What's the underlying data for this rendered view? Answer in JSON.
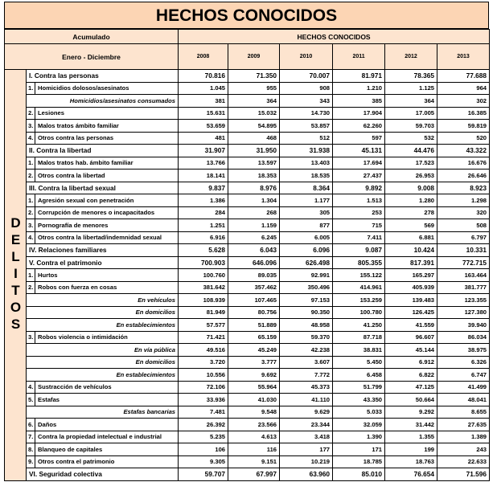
{
  "title": "HECHOS CONOCIDOS",
  "header": {
    "accumulated": "Acumulado",
    "period": "Enero - Diciembre",
    "group_title": "HECHOS CONOCIDOS",
    "years": [
      "2008",
      "2009",
      "2010",
      "2011",
      "2012",
      "2013"
    ]
  },
  "side_label": "DELITOS",
  "rows": [
    {
      "kind": "section",
      "label": "I. Contra las personas",
      "values": [
        "70.816",
        "71.350",
        "70.007",
        "81.971",
        "78.365",
        "77.688"
      ]
    },
    {
      "kind": "item",
      "num": "1.",
      "label": "Homicidios dolosos/asesinatos",
      "values": [
        "1.045",
        "955",
        "908",
        "1.210",
        "1.125",
        "964"
      ]
    },
    {
      "kind": "sub",
      "label": "Homicidios/asesinatos consumados",
      "values": [
        "381",
        "364",
        "343",
        "385",
        "364",
        "302"
      ]
    },
    {
      "kind": "item",
      "num": "2.",
      "label": "Lesiones",
      "values": [
        "15.631",
        "15.032",
        "14.730",
        "17.904",
        "17.005",
        "16.385"
      ]
    },
    {
      "kind": "item",
      "num": "3.",
      "label": "Malos tratos ámbito familiar",
      "values": [
        "53.659",
        "54.895",
        "53.857",
        "62.260",
        "59.703",
        "59.819"
      ]
    },
    {
      "kind": "item",
      "num": "4.",
      "label": "Otros contra las personas",
      "values": [
        "481",
        "468",
        "512",
        "597",
        "532",
        "520"
      ]
    },
    {
      "kind": "section",
      "label": "II. Contra la libertad",
      "values": [
        "31.907",
        "31.950",
        "31.938",
        "45.131",
        "44.476",
        "43.322"
      ]
    },
    {
      "kind": "item",
      "num": "1.",
      "label": "Malos tratos hab. ámbito familiar",
      "values": [
        "13.766",
        "13.597",
        "13.403",
        "17.694",
        "17.523",
        "16.676"
      ]
    },
    {
      "kind": "item",
      "num": "2.",
      "label": "Otros contra la libertad",
      "values": [
        "18.141",
        "18.353",
        "18.535",
        "27.437",
        "26.953",
        "26.646"
      ]
    },
    {
      "kind": "section",
      "label": "III. Contra la libertad sexual",
      "values": [
        "9.837",
        "8.976",
        "8.364",
        "9.892",
        "9.008",
        "8.923"
      ]
    },
    {
      "kind": "item",
      "num": "1.",
      "label": "Agresión sexual con penetración",
      "values": [
        "1.386",
        "1.304",
        "1.177",
        "1.513",
        "1.280",
        "1.298"
      ]
    },
    {
      "kind": "item",
      "num": "2.",
      "label": "Corrupción de menores o incapacitados",
      "values": [
        "284",
        "268",
        "305",
        "253",
        "278",
        "320"
      ]
    },
    {
      "kind": "item",
      "num": "3.",
      "label": "Pornografía de menores",
      "values": [
        "1.251",
        "1.159",
        "877",
        "715",
        "569",
        "508"
      ]
    },
    {
      "kind": "item",
      "num": "4.",
      "label": "Otros contra la libertad/indemnidad sexual",
      "values": [
        "6.916",
        "6.245",
        "6.005",
        "7.411",
        "6.881",
        "6.797"
      ]
    },
    {
      "kind": "section",
      "label": "IV. Relaciones familiares",
      "values": [
        "5.628",
        "6.043",
        "6.096",
        "9.087",
        "10.424",
        "10.331"
      ]
    },
    {
      "kind": "section",
      "label": "V. Contra el patrimonio",
      "values": [
        "700.903",
        "646.096",
        "626.498",
        "805.355",
        "817.391",
        "772.715"
      ]
    },
    {
      "kind": "item",
      "num": "1.",
      "label": "Hurtos",
      "values": [
        "100.760",
        "89.035",
        "92.991",
        "155.122",
        "165.297",
        "163.464"
      ]
    },
    {
      "kind": "item",
      "num": "2.",
      "label": "Robos con fuerza en cosas",
      "values": [
        "381.642",
        "357.462",
        "350.496",
        "414.961",
        "405.939",
        "381.777"
      ]
    },
    {
      "kind": "sub",
      "label": "En vehículos",
      "values": [
        "108.939",
        "107.465",
        "97.153",
        "153.259",
        "139.483",
        "123.355"
      ]
    },
    {
      "kind": "sub",
      "label": "En domicilios",
      "values": [
        "81.949",
        "80.756",
        "90.350",
        "100.780",
        "126.425",
        "127.380"
      ]
    },
    {
      "kind": "sub",
      "label": "En establecimientos",
      "values": [
        "57.577",
        "51.889",
        "48.958",
        "41.250",
        "41.559",
        "39.940"
      ]
    },
    {
      "kind": "item",
      "num": "3.",
      "label": "Robos violencia o intimidación",
      "values": [
        "71.421",
        "65.159",
        "59.370",
        "87.718",
        "96.607",
        "86.034"
      ]
    },
    {
      "kind": "sub",
      "label": "En vía pública",
      "values": [
        "49.516",
        "45.249",
        "42.238",
        "38.831",
        "45.144",
        "38.975"
      ]
    },
    {
      "kind": "sub",
      "label": "En domicilios",
      "values": [
        "3.720",
        "3.777",
        "3.607",
        "5.450",
        "6.912",
        "6.326"
      ]
    },
    {
      "kind": "sub",
      "label": "En establecimientos",
      "values": [
        "10.556",
        "9.692",
        "7.772",
        "6.458",
        "6.822",
        "6.747"
      ]
    },
    {
      "kind": "item",
      "num": "4.",
      "label": "Sustracción de vehículos",
      "values": [
        "72.106",
        "55.964",
        "45.373",
        "51.799",
        "47.125",
        "41.499"
      ]
    },
    {
      "kind": "item",
      "num": "5.",
      "label": "Estafas",
      "values": [
        "33.936",
        "41.030",
        "41.110",
        "43.350",
        "50.664",
        "48.041"
      ]
    },
    {
      "kind": "sub",
      "label": "Estafas bancarias",
      "values": [
        "7.481",
        "9.548",
        "9.629",
        "5.033",
        "9.292",
        "8.655"
      ]
    },
    {
      "kind": "item",
      "num": "6.",
      "label": "Daños",
      "values": [
        "26.392",
        "23.566",
        "23.344",
        "32.059",
        "31.442",
        "27.635"
      ]
    },
    {
      "kind": "item",
      "num": "7.",
      "label": "Contra la propiedad intelectual e industrial",
      "values": [
        "5.235",
        "4.613",
        "3.418",
        "1.390",
        "1.355",
        "1.389"
      ]
    },
    {
      "kind": "item",
      "num": "8.",
      "label": "Blanqueo de capitales",
      "values": [
        "106",
        "116",
        "177",
        "171",
        "199",
        "243"
      ]
    },
    {
      "kind": "item",
      "num": "9.",
      "label": "Otros contra el patrimonio",
      "values": [
        "9.305",
        "9.151",
        "10.219",
        "18.785",
        "18.763",
        "22.633"
      ]
    },
    {
      "kind": "section",
      "label": "VI. Seguridad colectiva",
      "values": [
        "59.707",
        "67.997",
        "63.960",
        "85.010",
        "76.654",
        "71.596"
      ]
    }
  ]
}
